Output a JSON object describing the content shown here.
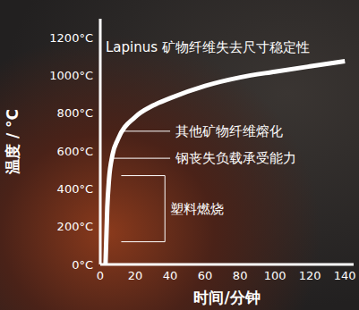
{
  "chart_data": {
    "type": "line",
    "x_label": "时间/分钟",
    "y_label": "温度 / °C",
    "x": [
      3,
      4,
      5,
      7,
      10,
      20,
      30,
      40,
      60,
      80,
      100,
      120,
      140
    ],
    "values": [
      0,
      300,
      450,
      580,
      660,
      780,
      840,
      880,
      945,
      990,
      1020,
      1048,
      1075
    ],
    "color": "#ffffff",
    "xlim": [
      0,
      145
    ],
    "xticks": [
      0,
      20,
      40,
      60,
      80,
      100,
      120,
      140
    ],
    "ylim": [
      0,
      1300
    ],
    "yticks": [
      {
        "value": 0,
        "label": "0°C"
      },
      {
        "value": 200,
        "label": "200°C"
      },
      {
        "value": 400,
        "label": "400°C"
      },
      {
        "value": 600,
        "label": "600°C"
      },
      {
        "value": 800,
        "label": "800°C"
      },
      {
        "value": 1000,
        "label": "1000°C"
      },
      {
        "value": 1200,
        "label": "1200°C"
      }
    ],
    "grid": false,
    "annotations": [
      {
        "text": "Lapinus 矿物纤维失去尺寸稳定性",
        "y": 1150
      },
      {
        "text": "其他矿物纤维熔化",
        "y": 705
      },
      {
        "text": "钢丧失负载承受能力",
        "y": 562
      },
      {
        "text": "塑料燃烧",
        "y_range": [
          120,
          470
        ]
      }
    ]
  }
}
